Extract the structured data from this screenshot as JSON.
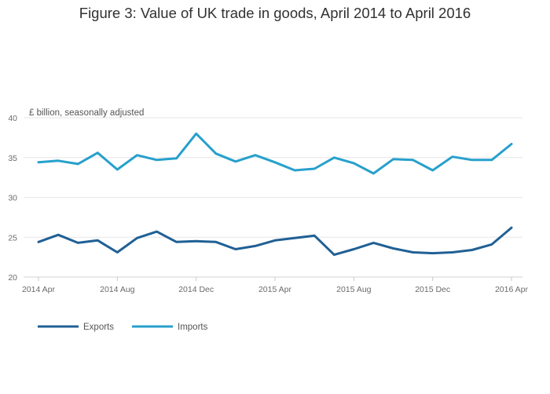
{
  "chart_data": {
    "type": "line",
    "title": "Figure 3: Value of UK trade in goods, April 2014 to April 2016",
    "ylabel": "£ billion, seasonally adjusted",
    "xlabel": "",
    "ylim": [
      20,
      40
    ],
    "yticks": [
      "40",
      "35",
      "30",
      "25",
      "20"
    ],
    "x": [
      "2014 Apr",
      "2014 May",
      "2014 Jun",
      "2014 Jul",
      "2014 Aug",
      "2014 Sep",
      "2014 Oct",
      "2014 Nov",
      "2014 Dec",
      "2015 Jan",
      "2015 Feb",
      "2015 Mar",
      "2015 Apr",
      "2015 May",
      "2015 Jun",
      "2015 Jul",
      "2015 Aug",
      "2015 Sep",
      "2015 Oct",
      "2015 Nov",
      "2015 Dec",
      "2016 Jan",
      "2016 Feb",
      "2016 Mar",
      "2016 Apr"
    ],
    "xtick_labels": [
      "2014 Apr",
      "2014 Aug",
      "2014 Dec",
      "2015 Apr",
      "2015 Aug",
      "2015 Dec",
      "2016 Apr"
    ],
    "grid": true,
    "legend": "bottom-left",
    "series": [
      {
        "name": "Exports",
        "color": "#206095",
        "values": [
          24.4,
          25.3,
          24.3,
          24.6,
          23.1,
          24.9,
          25.7,
          24.4,
          24.5,
          24.4,
          23.5,
          23.9,
          24.6,
          24.9,
          25.2,
          22.8,
          23.5,
          24.3,
          23.6,
          23.1,
          23.0,
          23.1,
          23.4,
          24.1,
          26.2
        ]
      },
      {
        "name": "Imports",
        "color": "#27a0cc",
        "values": [
          34.4,
          34.6,
          34.2,
          35.6,
          33.5,
          35.3,
          34.7,
          34.9,
          38.0,
          35.5,
          34.5,
          35.3,
          34.4,
          33.4,
          33.6,
          35.0,
          34.3,
          33.0,
          34.8,
          34.7,
          33.4,
          35.1,
          34.7,
          34.7,
          36.7
        ]
      }
    ]
  }
}
